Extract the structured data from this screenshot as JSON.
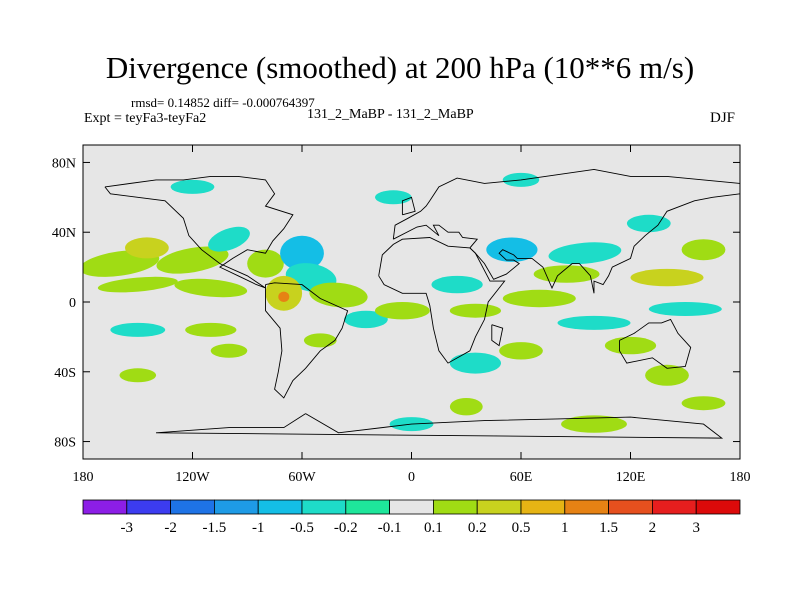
{
  "header": {
    "title": "Divergence (smoothed) at 200 hPa (10**6 m/s)",
    "stats": "rmsd= 0.14852 diff= -0.000764397",
    "expt": "Expt = teyFa3-teyFa2",
    "case": "131_2_MaBP - 131_2_MaBP",
    "season": "DJF"
  },
  "chart_data": {
    "type": "heatmap",
    "title": "Divergence (smoothed) at 200 hPa (10**6 m/s)",
    "xlabel": "",
    "ylabel": "",
    "x_range": [
      -180,
      180
    ],
    "y_range": [
      -90,
      90
    ],
    "x_ticks": [
      {
        "value": -180,
        "label": "180"
      },
      {
        "value": -120,
        "label": "120W"
      },
      {
        "value": -60,
        "label": "60W"
      },
      {
        "value": 0,
        "label": "0"
      },
      {
        "value": 60,
        "label": "60E"
      },
      {
        "value": 120,
        "label": "120E"
      },
      {
        "value": 180,
        "label": "180"
      }
    ],
    "y_ticks": [
      {
        "value": 80,
        "label": "80N"
      },
      {
        "value": 40,
        "label": "40N"
      },
      {
        "value": 0,
        "label": "0"
      },
      {
        "value": -40,
        "label": "40S"
      },
      {
        "value": -80,
        "label": "80S"
      }
    ],
    "colorbar": {
      "labels": [
        "-3",
        "-2",
        "-1.5",
        "-1",
        "-0.5",
        "-0.2",
        "-0.1",
        "0.1",
        "0.2",
        "0.5",
        "1",
        "1.5",
        "2",
        "3"
      ],
      "colors": [
        "#8c1ee6",
        "#3c3cf0",
        "#1e73e6",
        "#1e9be6",
        "#14bee6",
        "#1edcc8",
        "#1ee69b",
        "#e6e6e6",
        "#a0dc14",
        "#c8d21e",
        "#e6b414",
        "#e68214",
        "#e6501e",
        "#e61e1e",
        "#dc0a0a"
      ]
    },
    "features": [
      {
        "lon": -160,
        "lat": 22,
        "a": 22,
        "b": 7,
        "rot": -8,
        "level": "pos_low"
      },
      {
        "lon": -145,
        "lat": 31,
        "a": 12,
        "b": 6,
        "rot": 0,
        "level": "pos_mid"
      },
      {
        "lon": -120,
        "lat": 24,
        "a": 20,
        "b": 7,
        "rot": -10,
        "level": "pos_low"
      },
      {
        "lon": -100,
        "lat": 36,
        "a": 12,
        "b": 6,
        "rot": -20,
        "level": "neg_low"
      },
      {
        "lon": -80,
        "lat": 22,
        "a": 10,
        "b": 8,
        "rot": 0,
        "level": "pos_low"
      },
      {
        "lon": -60,
        "lat": 28,
        "a": 12,
        "b": 10,
        "rot": 0,
        "level": "neg_mid"
      },
      {
        "lon": -55,
        "lat": 14,
        "a": 14,
        "b": 8,
        "rot": 10,
        "level": "neg_low"
      },
      {
        "lon": -40,
        "lat": 4,
        "a": 16,
        "b": 7,
        "rot": 5,
        "level": "pos_low"
      },
      {
        "lon": -70,
        "lat": 5,
        "a": 10,
        "b": 10,
        "rot": 0,
        "level": "pos_mid"
      },
      {
        "lon": -70,
        "lat": 3,
        "a": 3,
        "b": 3,
        "rot": 0,
        "level": "pos_high"
      },
      {
        "lon": -150,
        "lat": 10,
        "a": 22,
        "b": 4,
        "rot": -5,
        "level": "pos_low"
      },
      {
        "lon": -110,
        "lat": 8,
        "a": 20,
        "b": 5,
        "rot": 5,
        "level": "pos_low"
      },
      {
        "lon": -150,
        "lat": -16,
        "a": 15,
        "b": 4,
        "rot": 0,
        "level": "neg_low"
      },
      {
        "lon": -110,
        "lat": -16,
        "a": 14,
        "b": 4,
        "rot": 0,
        "level": "pos_low"
      },
      {
        "lon": -150,
        "lat": -42,
        "a": 10,
        "b": 4,
        "rot": 0,
        "level": "pos_low"
      },
      {
        "lon": -100,
        "lat": -28,
        "a": 10,
        "b": 4,
        "rot": 0,
        "level": "pos_low"
      },
      {
        "lon": -50,
        "lat": -22,
        "a": 9,
        "b": 4,
        "rot": 0,
        "level": "pos_low"
      },
      {
        "lon": -25,
        "lat": -10,
        "a": 12,
        "b": 5,
        "rot": 0,
        "level": "neg_low"
      },
      {
        "lon": -5,
        "lat": -5,
        "a": 15,
        "b": 5,
        "rot": 0,
        "level": "pos_low"
      },
      {
        "lon": 35,
        "lat": -5,
        "a": 14,
        "b": 4,
        "rot": 0,
        "level": "pos_low"
      },
      {
        "lon": 25,
        "lat": 10,
        "a": 14,
        "b": 5,
        "rot": 0,
        "level": "neg_low"
      },
      {
        "lon": 55,
        "lat": 30,
        "a": 14,
        "b": 7,
        "rot": 0,
        "level": "neg_mid"
      },
      {
        "lon": 95,
        "lat": 28,
        "a": 20,
        "b": 6,
        "rot": -5,
        "level": "neg_low"
      },
      {
        "lon": 85,
        "lat": 16,
        "a": 18,
        "b": 5,
        "rot": 0,
        "level": "pos_low"
      },
      {
        "lon": 70,
        "lat": 2,
        "a": 20,
        "b": 5,
        "rot": 0,
        "level": "pos_low"
      },
      {
        "lon": 140,
        "lat": 14,
        "a": 20,
        "b": 5,
        "rot": 0,
        "level": "pos_mid"
      },
      {
        "lon": 150,
        "lat": -4,
        "a": 20,
        "b": 4,
        "rot": 0,
        "level": "neg_low"
      },
      {
        "lon": 100,
        "lat": -12,
        "a": 20,
        "b": 4,
        "rot": 0,
        "level": "neg_low"
      },
      {
        "lon": 120,
        "lat": -25,
        "a": 14,
        "b": 5,
        "rot": 0,
        "level": "pos_low"
      },
      {
        "lon": 140,
        "lat": -42,
        "a": 12,
        "b": 6,
        "rot": 0,
        "level": "pos_low"
      },
      {
        "lon": 60,
        "lat": -28,
        "a": 12,
        "b": 5,
        "rot": 0,
        "level": "pos_low"
      },
      {
        "lon": 30,
        "lat": -60,
        "a": 9,
        "b": 5,
        "rot": 0,
        "level": "pos_low"
      },
      {
        "lon": 100,
        "lat": -70,
        "a": 18,
        "b": 5,
        "rot": 0,
        "level": "pos_low"
      },
      {
        "lon": 0,
        "lat": -70,
        "a": 12,
        "b": 4,
        "rot": 0,
        "level": "neg_low"
      },
      {
        "lon": 130,
        "lat": 45,
        "a": 12,
        "b": 5,
        "rot": 0,
        "level": "neg_low"
      },
      {
        "lon": 160,
        "lat": 30,
        "a": 12,
        "b": 6,
        "rot": 0,
        "level": "pos_low"
      },
      {
        "lon": 60,
        "lat": 70,
        "a": 10,
        "b": 4,
        "rot": 0,
        "level": "neg_low"
      },
      {
        "lon": -120,
        "lat": 66,
        "a": 12,
        "b": 4,
        "rot": 0,
        "level": "neg_low"
      },
      {
        "lon": -10,
        "lat": 60,
        "a": 10,
        "b": 4,
        "rot": 0,
        "level": "neg_low"
      },
      {
        "lon": 35,
        "lat": -35,
        "a": 14,
        "b": 6,
        "rot": 0,
        "level": "neg_low"
      },
      {
        "lon": 160,
        "lat": -58,
        "a": 12,
        "b": 4,
        "rot": 0,
        "level": "pos_low"
      }
    ],
    "coastlines": [
      [
        [
          -168,
          66
        ],
        [
          -140,
          70
        ],
        [
          -125,
          70
        ],
        [
          -110,
          72
        ],
        [
          -95,
          72
        ],
        [
          -80,
          70
        ],
        [
          -75,
          62
        ],
        [
          -80,
          55
        ],
        [
          -65,
          50
        ],
        [
          -70,
          42
        ],
        [
          -76,
          35
        ],
        [
          -80,
          28
        ],
        [
          -90,
          30
        ],
        [
          -98,
          25
        ],
        [
          -105,
          20
        ],
        [
          -95,
          15
        ],
        [
          -85,
          10
        ],
        [
          -80,
          8
        ],
        [
          -90,
          15
        ],
        [
          -105,
          22
        ],
        [
          -115,
          30
        ],
        [
          -122,
          38
        ],
        [
          -125,
          48
        ],
        [
          -135,
          58
        ],
        [
          -150,
          60
        ],
        [
          -165,
          62
        ],
        [
          -168,
          66
        ]
      ],
      [
        [
          -80,
          10
        ],
        [
          -75,
          11
        ],
        [
          -60,
          10
        ],
        [
          -50,
          2
        ],
        [
          -35,
          -5
        ],
        [
          -38,
          -15
        ],
        [
          -42,
          -22
        ],
        [
          -50,
          -28
        ],
        [
          -58,
          -38
        ],
        [
          -65,
          -45
        ],
        [
          -70,
          -55
        ],
        [
          -75,
          -50
        ],
        [
          -73,
          -40
        ],
        [
          -71,
          -28
        ],
        [
          -72,
          -15
        ],
        [
          -80,
          -5
        ],
        [
          -80,
          2
        ],
        [
          -80,
          10
        ]
      ],
      [
        [
          -18,
          15
        ],
        [
          -16,
          27
        ],
        [
          -10,
          33
        ],
        [
          -5,
          36
        ],
        [
          10,
          37
        ],
        [
          20,
          32
        ],
        [
          32,
          31
        ],
        [
          35,
          28
        ],
        [
          43,
          12
        ],
        [
          51,
          12
        ],
        [
          42,
          0
        ],
        [
          40,
          -10
        ],
        [
          35,
          -20
        ],
        [
          32,
          -28
        ],
        [
          20,
          -35
        ],
        [
          15,
          -28
        ],
        [
          12,
          -15
        ],
        [
          10,
          -2
        ],
        [
          8,
          5
        ],
        [
          -5,
          5
        ],
        [
          -15,
          10
        ],
        [
          -18,
          15
        ]
      ],
      [
        [
          -10,
          36
        ],
        [
          -9,
          44
        ],
        [
          -2,
          48
        ],
        [
          5,
          52
        ],
        [
          8,
          55
        ],
        [
          10,
          58
        ],
        [
          15,
          66
        ],
        [
          25,
          71
        ],
        [
          40,
          68
        ],
        [
          60,
          70
        ],
        [
          80,
          73
        ],
        [
          100,
          76
        ],
        [
          120,
          72
        ],
        [
          140,
          72
        ],
        [
          160,
          70
        ],
        [
          180,
          68
        ]
      ],
      [
        [
          180,
          62
        ],
        [
          165,
          60
        ],
        [
          155,
          58
        ],
        [
          140,
          52
        ],
        [
          135,
          44
        ],
        [
          128,
          38
        ],
        [
          122,
          32
        ],
        [
          120,
          25
        ],
        [
          110,
          20
        ],
        [
          108,
          15
        ],
        [
          105,
          10
        ],
        [
          100,
          12
        ],
        [
          100,
          5
        ],
        [
          98,
          15
        ],
        [
          92,
          22
        ],
        [
          88,
          22
        ],
        [
          80,
          15
        ],
        [
          77,
          8
        ],
        [
          72,
          20
        ],
        [
          66,
          25
        ],
        [
          58,
          25
        ],
        [
          56,
          27
        ],
        [
          50,
          30
        ],
        [
          48,
          28
        ],
        [
          52,
          24
        ],
        [
          56,
          24
        ],
        [
          59,
          22
        ],
        [
          52,
          16
        ],
        [
          45,
          13
        ],
        [
          40,
          22
        ],
        [
          35,
          28
        ],
        [
          32,
          31
        ],
        [
          36,
          36
        ],
        [
          28,
          37
        ],
        [
          26,
          40
        ],
        [
          20,
          40
        ],
        [
          15,
          44
        ],
        [
          12,
          44
        ],
        [
          15,
          38
        ],
        [
          8,
          44
        ],
        [
          3,
          43
        ],
        [
          -10,
          36
        ]
      ],
      [
        [
          114,
          -22
        ],
        [
          122,
          -18
        ],
        [
          130,
          -12
        ],
        [
          137,
          -12
        ],
        [
          142,
          -10
        ],
        [
          146,
          -18
        ],
        [
          153,
          -26
        ],
        [
          150,
          -37
        ],
        [
          140,
          -38
        ],
        [
          132,
          -32
        ],
        [
          118,
          -35
        ],
        [
          114,
          -28
        ],
        [
          114,
          -22
        ]
      ],
      [
        [
          -58,
          -64
        ],
        [
          -40,
          -75
        ],
        [
          0,
          -70
        ],
        [
          40,
          -68
        ],
        [
          80,
          -67
        ],
        [
          120,
          -66
        ],
        [
          160,
          -70
        ],
        [
          170,
          -78
        ],
        [
          -140,
          -75
        ],
        [
          -100,
          -72
        ],
        [
          -70,
          -72
        ],
        [
          -58,
          -64
        ]
      ],
      [
        [
          -5,
          50
        ],
        [
          -5,
          58
        ],
        [
          0,
          60
        ],
        [
          2,
          52
        ],
        [
          -5,
          50
        ]
      ],
      [
        [
          44,
          -13
        ],
        [
          50,
          -15
        ],
        [
          48,
          -25
        ],
        [
          44,
          -22
        ],
        [
          44,
          -13
        ]
      ]
    ]
  }
}
